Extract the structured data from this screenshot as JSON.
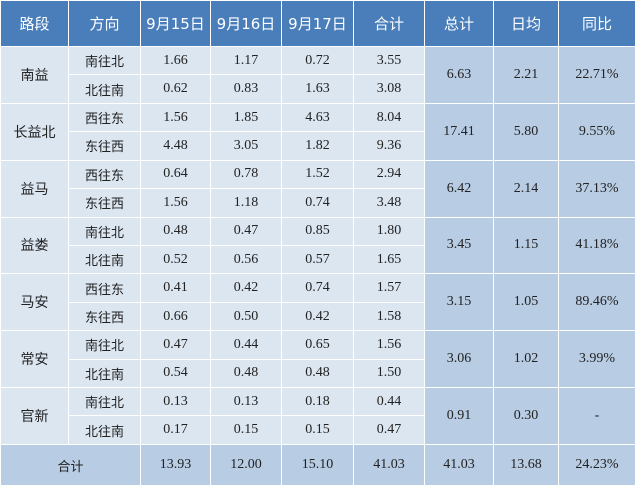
{
  "header": [
    "路段",
    "方向",
    "9月15日",
    "9月16日",
    "9月17日",
    "合计",
    "总计",
    "日均",
    "同比"
  ],
  "groups": [
    {
      "road": "南益",
      "total": "6.63",
      "avg": "2.21",
      "yoy": "22.71%",
      "rows": [
        {
          "dir": "南往北",
          "d15": "1.66",
          "d16": "1.17",
          "d17": "0.72",
          "sum": "3.55"
        },
        {
          "dir": "北往南",
          "d15": "0.62",
          "d16": "0.83",
          "d17": "1.63",
          "sum": "3.08"
        }
      ]
    },
    {
      "road": "长益北",
      "total": "17.41",
      "avg": "5.80",
      "yoy": "9.55%",
      "rows": [
        {
          "dir": "西往东",
          "d15": "1.56",
          "d16": "1.85",
          "d17": "4.63",
          "sum": "8.04"
        },
        {
          "dir": "东往西",
          "d15": "4.48",
          "d16": "3.05",
          "d17": "1.82",
          "sum": "9.36"
        }
      ]
    },
    {
      "road": "益马",
      "total": "6.42",
      "avg": "2.14",
      "yoy": "37.13%",
      "rows": [
        {
          "dir": "西往东",
          "d15": "0.64",
          "d16": "0.78",
          "d17": "1.52",
          "sum": "2.94"
        },
        {
          "dir": "东往西",
          "d15": "1.56",
          "d16": "1.18",
          "d17": "0.74",
          "sum": "3.48"
        }
      ]
    },
    {
      "road": "益娄",
      "total": "3.45",
      "avg": "1.15",
      "yoy": "41.18%",
      "rows": [
        {
          "dir": "南往北",
          "d15": "0.48",
          "d16": "0.47",
          "d17": "0.85",
          "sum": "1.80"
        },
        {
          "dir": "北往南",
          "d15": "0.52",
          "d16": "0.56",
          "d17": "0.57",
          "sum": "1.65"
        }
      ]
    },
    {
      "road": "马安",
      "total": "3.15",
      "avg": "1.05",
      "yoy": "89.46%",
      "rows": [
        {
          "dir": "西往东",
          "d15": "0.41",
          "d16": "0.42",
          "d17": "0.74",
          "sum": "1.57"
        },
        {
          "dir": "东往西",
          "d15": "0.66",
          "d16": "0.50",
          "d17": "0.42",
          "sum": "1.58"
        }
      ]
    },
    {
      "road": "常安",
      "total": "3.06",
      "avg": "1.02",
      "yoy": "3.99%",
      "rows": [
        {
          "dir": "南往北",
          "d15": "0.47",
          "d16": "0.44",
          "d17": "0.65",
          "sum": "1.56"
        },
        {
          "dir": "北往南",
          "d15": "0.54",
          "d16": "0.48",
          "d17": "0.48",
          "sum": "1.50"
        }
      ]
    },
    {
      "road": "官新",
      "total": "0.91",
      "avg": "0.30",
      "yoy": "-",
      "rows": [
        {
          "dir": "南往北",
          "d15": "0.13",
          "d16": "0.13",
          "d17": "0.18",
          "sum": "0.44"
        },
        {
          "dir": "北往南",
          "d15": "0.17",
          "d16": "0.15",
          "d17": "0.15",
          "sum": "0.47"
        }
      ]
    }
  ],
  "footer": {
    "label": "合计",
    "d15": "13.93",
    "d16": "12.00",
    "d17": "15.10",
    "sum": "41.03",
    "total": "41.03",
    "avg": "13.68",
    "yoy": "24.23%"
  }
}
